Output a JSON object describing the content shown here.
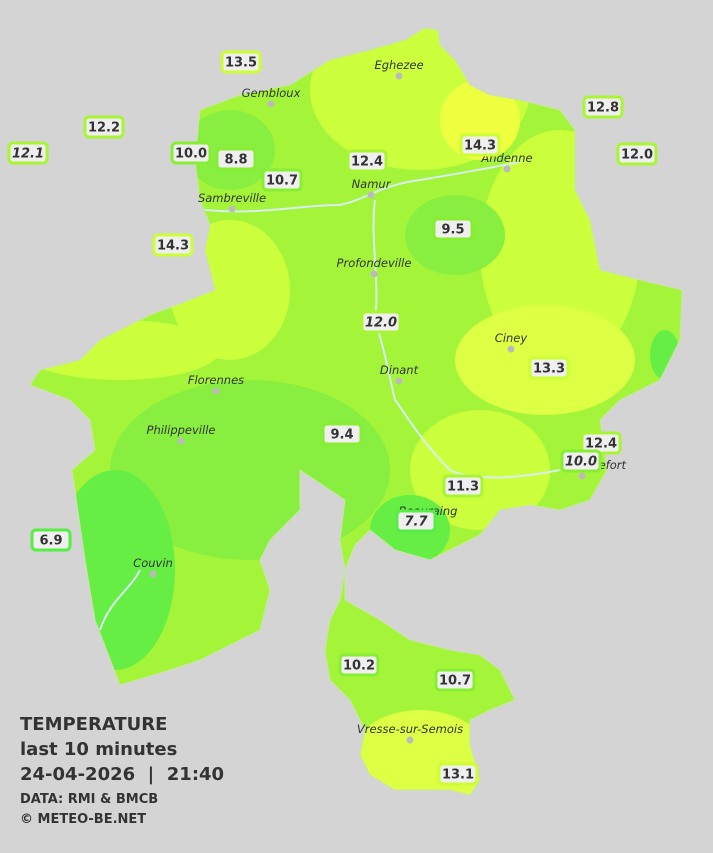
{
  "legend": {
    "title": "TEMPERATURE",
    "subtitle": "last 10 minutes",
    "datetime": "24-04-2026  |  21:40",
    "source": "DATA: RMI & BMCB",
    "credit": "© METEO-BE.NET"
  },
  "cities": [
    "Eghezee",
    "Gembloux",
    "Andenne",
    "Namur",
    "Sambreville",
    "Profondeville",
    "Ciney",
    "Florennes",
    "Dinant",
    "Philippeville",
    "Rochefort",
    "Beauraing",
    "Couvin",
    "Vresse-sur-Semois"
  ],
  "stations": [
    "13.5",
    "12.2",
    "12.1",
    "10.0",
    "8.8",
    "10.7",
    "12.4",
    "14.3",
    "12.8",
    "12.0",
    "9.5",
    "14.3",
    "12.0",
    "13.3",
    "9.4",
    "12.4",
    "10.0",
    "11.3",
    "7.7",
    "6.9",
    "10.2",
    "10.7",
    "13.1"
  ]
}
